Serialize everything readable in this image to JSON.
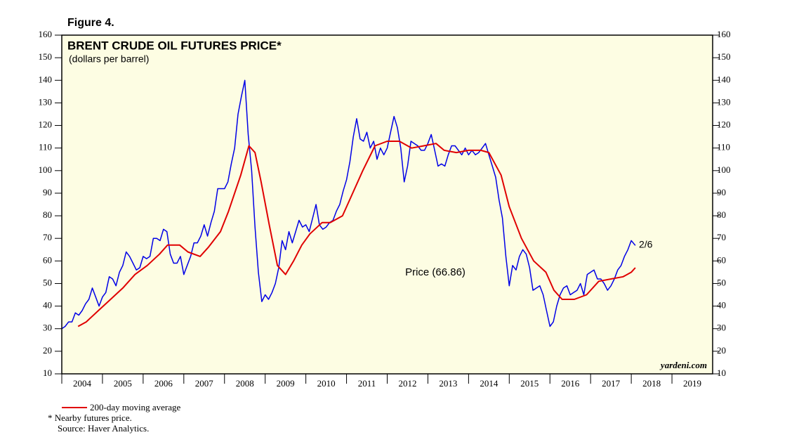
{
  "chart_data": {
    "type": "line",
    "figure_label": "Figure 4.",
    "title": "BRENT CRUDE OIL FUTURES PRICE*",
    "subtitle": "(dollars per barrel)",
    "annotations": [
      "Price (66.86)",
      "2/6"
    ],
    "watermark": "yardeni.com",
    "footnotes": [
      "*  Nearby futures price.",
      "Source: Haver Analytics."
    ],
    "xlim": [
      2004,
      2020
    ],
    "xticks": [
      2004,
      2005,
      2006,
      2007,
      2008,
      2009,
      2010,
      2011,
      2012,
      2013,
      2014,
      2015,
      2016,
      2017,
      2018,
      2019
    ],
    "ylim": [
      10,
      160
    ],
    "yticks": [
      10,
      20,
      30,
      40,
      50,
      60,
      70,
      80,
      90,
      100,
      110,
      120,
      130,
      140,
      150,
      160
    ],
    "background": "#fdfde3",
    "series": [
      {
        "color": "#0000e6",
        "x": [
          2004.0,
          2004.083,
          2004.167,
          2004.25,
          2004.333,
          2004.417,
          2004.5,
          2004.583,
          2004.667,
          2004.75,
          2004.833,
          2004.917,
          2005.0,
          2005.083,
          2005.167,
          2005.25,
          2005.333,
          2005.417,
          2005.5,
          2005.583,
          2005.667,
          2005.75,
          2005.833,
          2005.917,
          2006.0,
          2006.083,
          2006.167,
          2006.25,
          2006.333,
          2006.417,
          2006.5,
          2006.583,
          2006.667,
          2006.75,
          2006.833,
          2006.917,
          2007.0,
          2007.083,
          2007.167,
          2007.25,
          2007.333,
          2007.417,
          2007.5,
          2007.583,
          2007.667,
          2007.75,
          2007.833,
          2007.917,
          2008.0,
          2008.083,
          2008.167,
          2008.25,
          2008.333,
          2008.417,
          2008.5,
          2008.583,
          2008.667,
          2008.75,
          2008.833,
          2008.917,
          2009.0,
          2009.083,
          2009.167,
          2009.25,
          2009.333,
          2009.417,
          2009.5,
          2009.583,
          2009.667,
          2009.75,
          2009.833,
          2009.917,
          2010.0,
          2010.083,
          2010.167,
          2010.25,
          2010.333,
          2010.417,
          2010.5,
          2010.583,
          2010.667,
          2010.75,
          2010.833,
          2010.917,
          2011.0,
          2011.083,
          2011.167,
          2011.25,
          2011.333,
          2011.417,
          2011.5,
          2011.583,
          2011.667,
          2011.75,
          2011.833,
          2011.917,
          2012.0,
          2012.083,
          2012.167,
          2012.25,
          2012.333,
          2012.417,
          2012.5,
          2012.583,
          2012.667,
          2012.75,
          2012.833,
          2012.917,
          2013.0,
          2013.083,
          2013.167,
          2013.25,
          2013.333,
          2013.417,
          2013.5,
          2013.583,
          2013.667,
          2013.75,
          2013.833,
          2013.917,
          2014.0,
          2014.083,
          2014.167,
          2014.25,
          2014.333,
          2014.417,
          2014.5,
          2014.583,
          2014.667,
          2014.75,
          2014.833,
          2014.917,
          2015.0,
          2015.083,
          2015.167,
          2015.25,
          2015.333,
          2015.417,
          2015.5,
          2015.583,
          2015.667,
          2015.75,
          2015.833,
          2015.917,
          2016.0,
          2016.083,
          2016.167,
          2016.25,
          2016.333,
          2016.417,
          2016.5,
          2016.583,
          2016.667,
          2016.75,
          2016.833,
          2016.917,
          2017.0,
          2017.083,
          2017.167,
          2017.25,
          2017.333,
          2017.417,
          2017.5,
          2017.583,
          2017.667,
          2017.75,
          2017.833,
          2017.917,
          2018.0,
          2018.1
        ],
        "values": [
          30,
          31,
          33,
          33,
          37,
          36,
          38,
          41,
          43,
          48,
          44,
          40,
          44,
          46,
          53,
          52,
          49,
          55,
          58,
          64,
          62,
          59,
          56,
          57,
          62,
          61,
          62,
          70,
          70,
          69,
          74,
          73,
          63,
          59,
          59,
          62,
          54,
          58,
          62,
          68,
          68,
          71,
          76,
          71,
          77,
          82,
          92,
          92,
          92,
          95,
          103,
          110,
          125,
          133,
          140,
          116,
          100,
          75,
          55,
          42,
          45,
          43,
          46,
          50,
          57,
          69,
          65,
          73,
          68,
          73,
          78,
          75,
          76,
          73,
          79,
          85,
          76,
          74,
          75,
          77,
          78,
          82,
          85,
          91,
          96,
          104,
          115,
          123,
          114,
          113,
          117,
          110,
          113,
          105,
          110,
          107,
          110,
          117,
          124,
          119,
          110,
          95,
          102,
          113,
          112,
          111,
          109,
          109,
          112,
          116,
          109,
          102,
          103,
          102,
          107,
          111,
          111,
          109,
          107,
          110,
          107,
          109,
          107,
          108,
          110,
          112,
          107,
          102,
          97,
          87,
          79,
          62,
          49,
          58,
          56,
          62,
          65,
          63,
          57,
          47,
          48,
          49,
          45,
          38,
          31,
          33,
          40,
          45,
          48,
          49,
          45,
          46,
          47,
          50,
          45,
          54,
          55,
          56,
          52,
          52,
          50,
          47,
          49,
          52,
          56,
          58,
          62,
          65,
          69,
          66.86
        ]
      },
      {
        "name": "200-day moving average",
        "color": "#e00000",
        "x": [
          2004.4,
          2004.6,
          2004.9,
          2005.2,
          2005.5,
          2005.8,
          2006.1,
          2006.4,
          2006.6,
          2006.9,
          2007.1,
          2007.4,
          2007.6,
          2007.9,
          2008.1,
          2008.4,
          2008.6,
          2008.75,
          2008.9,
          2009.1,
          2009.3,
          2009.5,
          2009.7,
          2009.9,
          2010.1,
          2010.4,
          2010.6,
          2010.9,
          2011.1,
          2011.4,
          2011.7,
          2012.0,
          2012.3,
          2012.6,
          2012.9,
          2013.2,
          2013.4,
          2013.7,
          2014.0,
          2014.3,
          2014.5,
          2014.8,
          2015.0,
          2015.3,
          2015.6,
          2015.9,
          2016.1,
          2016.3,
          2016.6,
          2016.9,
          2017.2,
          2017.5,
          2017.8,
          2018.0,
          2018.1
        ],
        "values": [
          31,
          33,
          38,
          43,
          48,
          54,
          58,
          63,
          67,
          67,
          64,
          62,
          66,
          73,
          82,
          98,
          111,
          108,
          95,
          76,
          58,
          54,
          60,
          67,
          72,
          77,
          77,
          80,
          88,
          100,
          111,
          113,
          113,
          110,
          111,
          112,
          109,
          108,
          109,
          109,
          108,
          98,
          84,
          70,
          60,
          55,
          47,
          43,
          43,
          45,
          51,
          52,
          53,
          55,
          57
        ]
      }
    ]
  }
}
